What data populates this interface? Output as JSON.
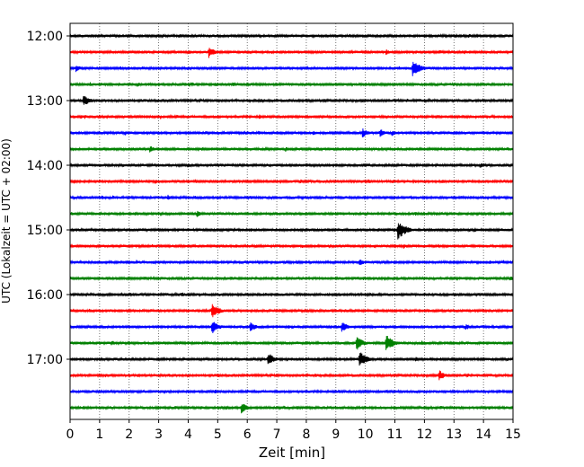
{
  "chart_data": {
    "type": "line",
    "title": "",
    "xlabel": "Zeit  [min]",
    "ylabel": "UTC (Lokalzeit = UTC + 02:00)",
    "xlim": [
      0,
      15
    ],
    "x_ticks": [
      "0",
      "1",
      "2",
      "3",
      "4",
      "5",
      "6",
      "7",
      "8",
      "9",
      "10",
      "11",
      "12",
      "13",
      "14",
      "15"
    ],
    "y_ticks": [
      "12:00",
      "13:00",
      "14:00",
      "15:00",
      "16:00",
      "17:00"
    ],
    "grid": "vertical dotted at each minute",
    "trace_interval_min": 15,
    "color_cycle": [
      "#000000",
      "#ff0000",
      "#0000ff",
      "#008000"
    ],
    "traces": [
      {
        "start": "12:00",
        "events": [
          {
            "t": 3.7,
            "a": 0.7
          },
          {
            "t": 13.5,
            "a": 0.6
          }
        ]
      },
      {
        "start": "12:15",
        "events": [
          {
            "t": 4.7,
            "a": 1.6
          },
          {
            "t": 10.7,
            "a": 0.8
          },
          {
            "t": 15.0,
            "a": 1.0
          }
        ]
      },
      {
        "start": "12:30",
        "events": [
          {
            "t": 0.2,
            "a": 1.0
          },
          {
            "t": 11.6,
            "a": 2.5
          }
        ]
      },
      {
        "start": "12:45",
        "events": [
          {
            "t": 2.3,
            "a": 0.6
          },
          {
            "t": 4.6,
            "a": 0.5
          }
        ]
      },
      {
        "start": "13:00",
        "events": [
          {
            "t": 0.45,
            "a": 1.7
          }
        ]
      },
      {
        "start": "13:15",
        "events": [
          {
            "t": 3.6,
            "a": 0.6
          },
          {
            "t": 6.4,
            "a": 0.7
          }
        ]
      },
      {
        "start": "13:30",
        "events": [
          {
            "t": 9.9,
            "a": 1.3
          },
          {
            "t": 10.5,
            "a": 1.2
          },
          {
            "t": 10.9,
            "a": 0.8
          }
        ]
      },
      {
        "start": "13:45",
        "events": [
          {
            "t": 2.7,
            "a": 1.1
          },
          {
            "t": 7.3,
            "a": 0.7
          }
        ]
      },
      {
        "start": "14:00",
        "events": [
          {
            "t": 4.0,
            "a": 0.6
          },
          {
            "t": 7.6,
            "a": 0.5
          },
          {
            "t": 13.9,
            "a": 0.7
          }
        ]
      },
      {
        "start": "14:15",
        "events": [
          {
            "t": 7.8,
            "a": 0.6
          },
          {
            "t": 10.1,
            "a": 0.6
          },
          {
            "t": 12.6,
            "a": 0.6
          }
        ]
      },
      {
        "start": "14:30",
        "events": [
          {
            "t": 3.3,
            "a": 0.8
          },
          {
            "t": 7.1,
            "a": 0.5
          }
        ]
      },
      {
        "start": "14:45",
        "events": [
          {
            "t": 4.3,
            "a": 0.9
          },
          {
            "t": 12.4,
            "a": 0.6
          }
        ]
      },
      {
        "start": "15:00",
        "events": [
          {
            "t": 11.1,
            "a": 2.8
          },
          {
            "t": 13.7,
            "a": 0.7
          }
        ]
      },
      {
        "start": "15:15",
        "events": [
          {
            "t": 6.3,
            "a": 0.6
          },
          {
            "t": 9.2,
            "a": 0.5
          }
        ]
      },
      {
        "start": "15:30",
        "events": [
          {
            "t": 9.8,
            "a": 1.0
          },
          {
            "t": 7.3,
            "a": 0.5
          }
        ]
      },
      {
        "start": "15:45",
        "events": [
          {
            "t": 4.9,
            "a": 0.5
          },
          {
            "t": 14.9,
            "a": 0.7
          }
        ]
      },
      {
        "start": "16:00",
        "events": [
          {
            "t": 3.8,
            "a": 0.6
          },
          {
            "t": 6.6,
            "a": 0.6
          },
          {
            "t": 15.0,
            "a": 0.8
          }
        ]
      },
      {
        "start": "16:15",
        "events": [
          {
            "t": 4.8,
            "a": 2.2
          },
          {
            "t": 9.3,
            "a": 0.6
          }
        ]
      },
      {
        "start": "16:30",
        "events": [
          {
            "t": 4.8,
            "a": 2.0
          },
          {
            "t": 6.1,
            "a": 1.5
          },
          {
            "t": 9.2,
            "a": 1.6
          },
          {
            "t": 13.4,
            "a": 0.9
          }
        ]
      },
      {
        "start": "16:45",
        "events": [
          {
            "t": 9.7,
            "a": 2.0
          },
          {
            "t": 10.7,
            "a": 2.4
          },
          {
            "t": 11.9,
            "a": 0.7
          },
          {
            "t": 1.4,
            "a": 0.6
          }
        ]
      },
      {
        "start": "17:00",
        "events": [
          {
            "t": 6.7,
            "a": 1.9
          },
          {
            "t": 9.8,
            "a": 2.3
          },
          {
            "t": 11.7,
            "a": 0.7
          }
        ]
      },
      {
        "start": "17:15",
        "events": [
          {
            "t": 12.5,
            "a": 1.5
          },
          {
            "t": 1.2,
            "a": 0.5
          }
        ]
      },
      {
        "start": "17:30",
        "events": [
          {
            "t": 3.2,
            "a": 0.6
          },
          {
            "t": 4.9,
            "a": 0.7
          }
        ]
      },
      {
        "start": "17:45",
        "events": [
          {
            "t": 5.8,
            "a": 1.6
          },
          {
            "t": 13.0,
            "a": 0.5
          }
        ]
      }
    ]
  }
}
